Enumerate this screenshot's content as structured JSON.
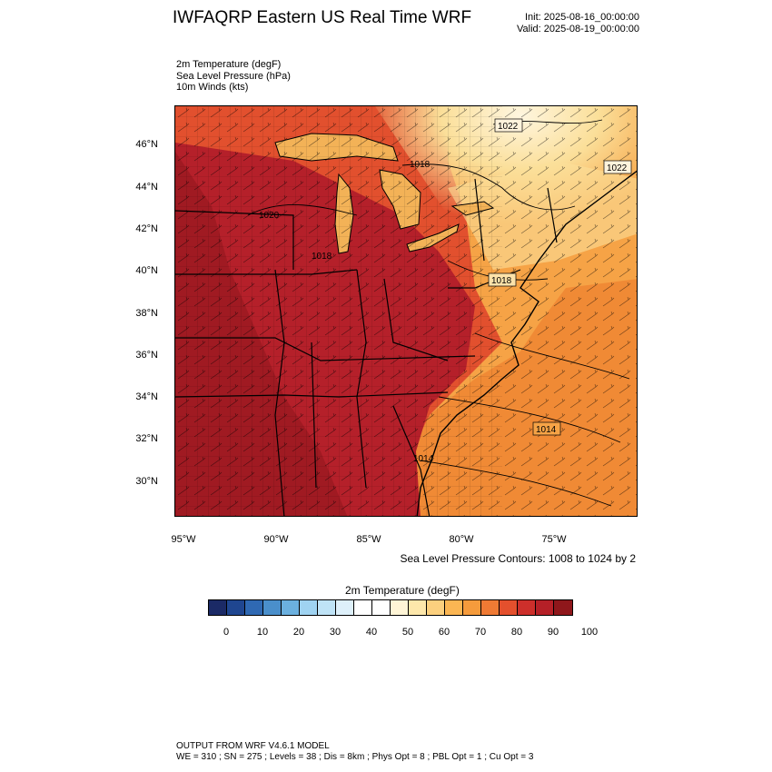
{
  "header": {
    "title": "IWFAQRP Eastern US Real Time WRF",
    "init": "Init: 2025-08-16_00:00:00",
    "valid": "Valid: 2025-08-19_00:00:00"
  },
  "fields": [
    "2m Temperature   (degF)",
    "Sea Level Pressure   (hPa)",
    "10m Winds   (kts)"
  ],
  "map": {
    "lat_labels": [
      "46°N",
      "44°N",
      "42°N",
      "40°N",
      "38°N",
      "36°N",
      "34°N",
      "32°N",
      "30°N"
    ],
    "lon_labels": [
      "95°W",
      "90°W",
      "85°W",
      "80°W",
      "75°W"
    ],
    "isobar_labels": [
      "1022",
      "1022",
      "1018",
      "1018",
      "1018",
      "1020",
      "1014",
      "1014"
    ],
    "contour_note": "Sea Level Pressure Contours: 1008 to 1024 by 2",
    "colors": {
      "hot": "#b5202a",
      "very_hot": "#a01a22",
      "warm": "#e2502e",
      "mild": "#f6a346",
      "cool": "#fbdf99",
      "ocean": "#f08a35"
    }
  },
  "colorbar": {
    "title": "2m Temperature  (degF)",
    "colors": [
      "#1b2a66",
      "#1f4690",
      "#2f69b3",
      "#4a8fcb",
      "#6bb0df",
      "#9fd3f1",
      "#bfe3f6",
      "#def0fa",
      "#ffffff",
      "#ffffff",
      "#fff5d6",
      "#fde7ab",
      "#fcd07e",
      "#fbb653",
      "#f59b3c",
      "#ef7a34",
      "#e4502d",
      "#cd2f2b",
      "#b52027",
      "#8f171b"
    ],
    "ticks": [
      "0",
      "10",
      "20",
      "30",
      "40",
      "50",
      "60",
      "70",
      "80",
      "90",
      "100"
    ]
  },
  "footer": {
    "line1": "OUTPUT FROM WRF V4.6.1 MODEL",
    "line2": "WE = 310 ; SN = 275 ; Levels = 38 ; Dis = 8km ; Phys Opt = 8 ; PBL Opt = 1 ; Cu Opt = 3"
  }
}
